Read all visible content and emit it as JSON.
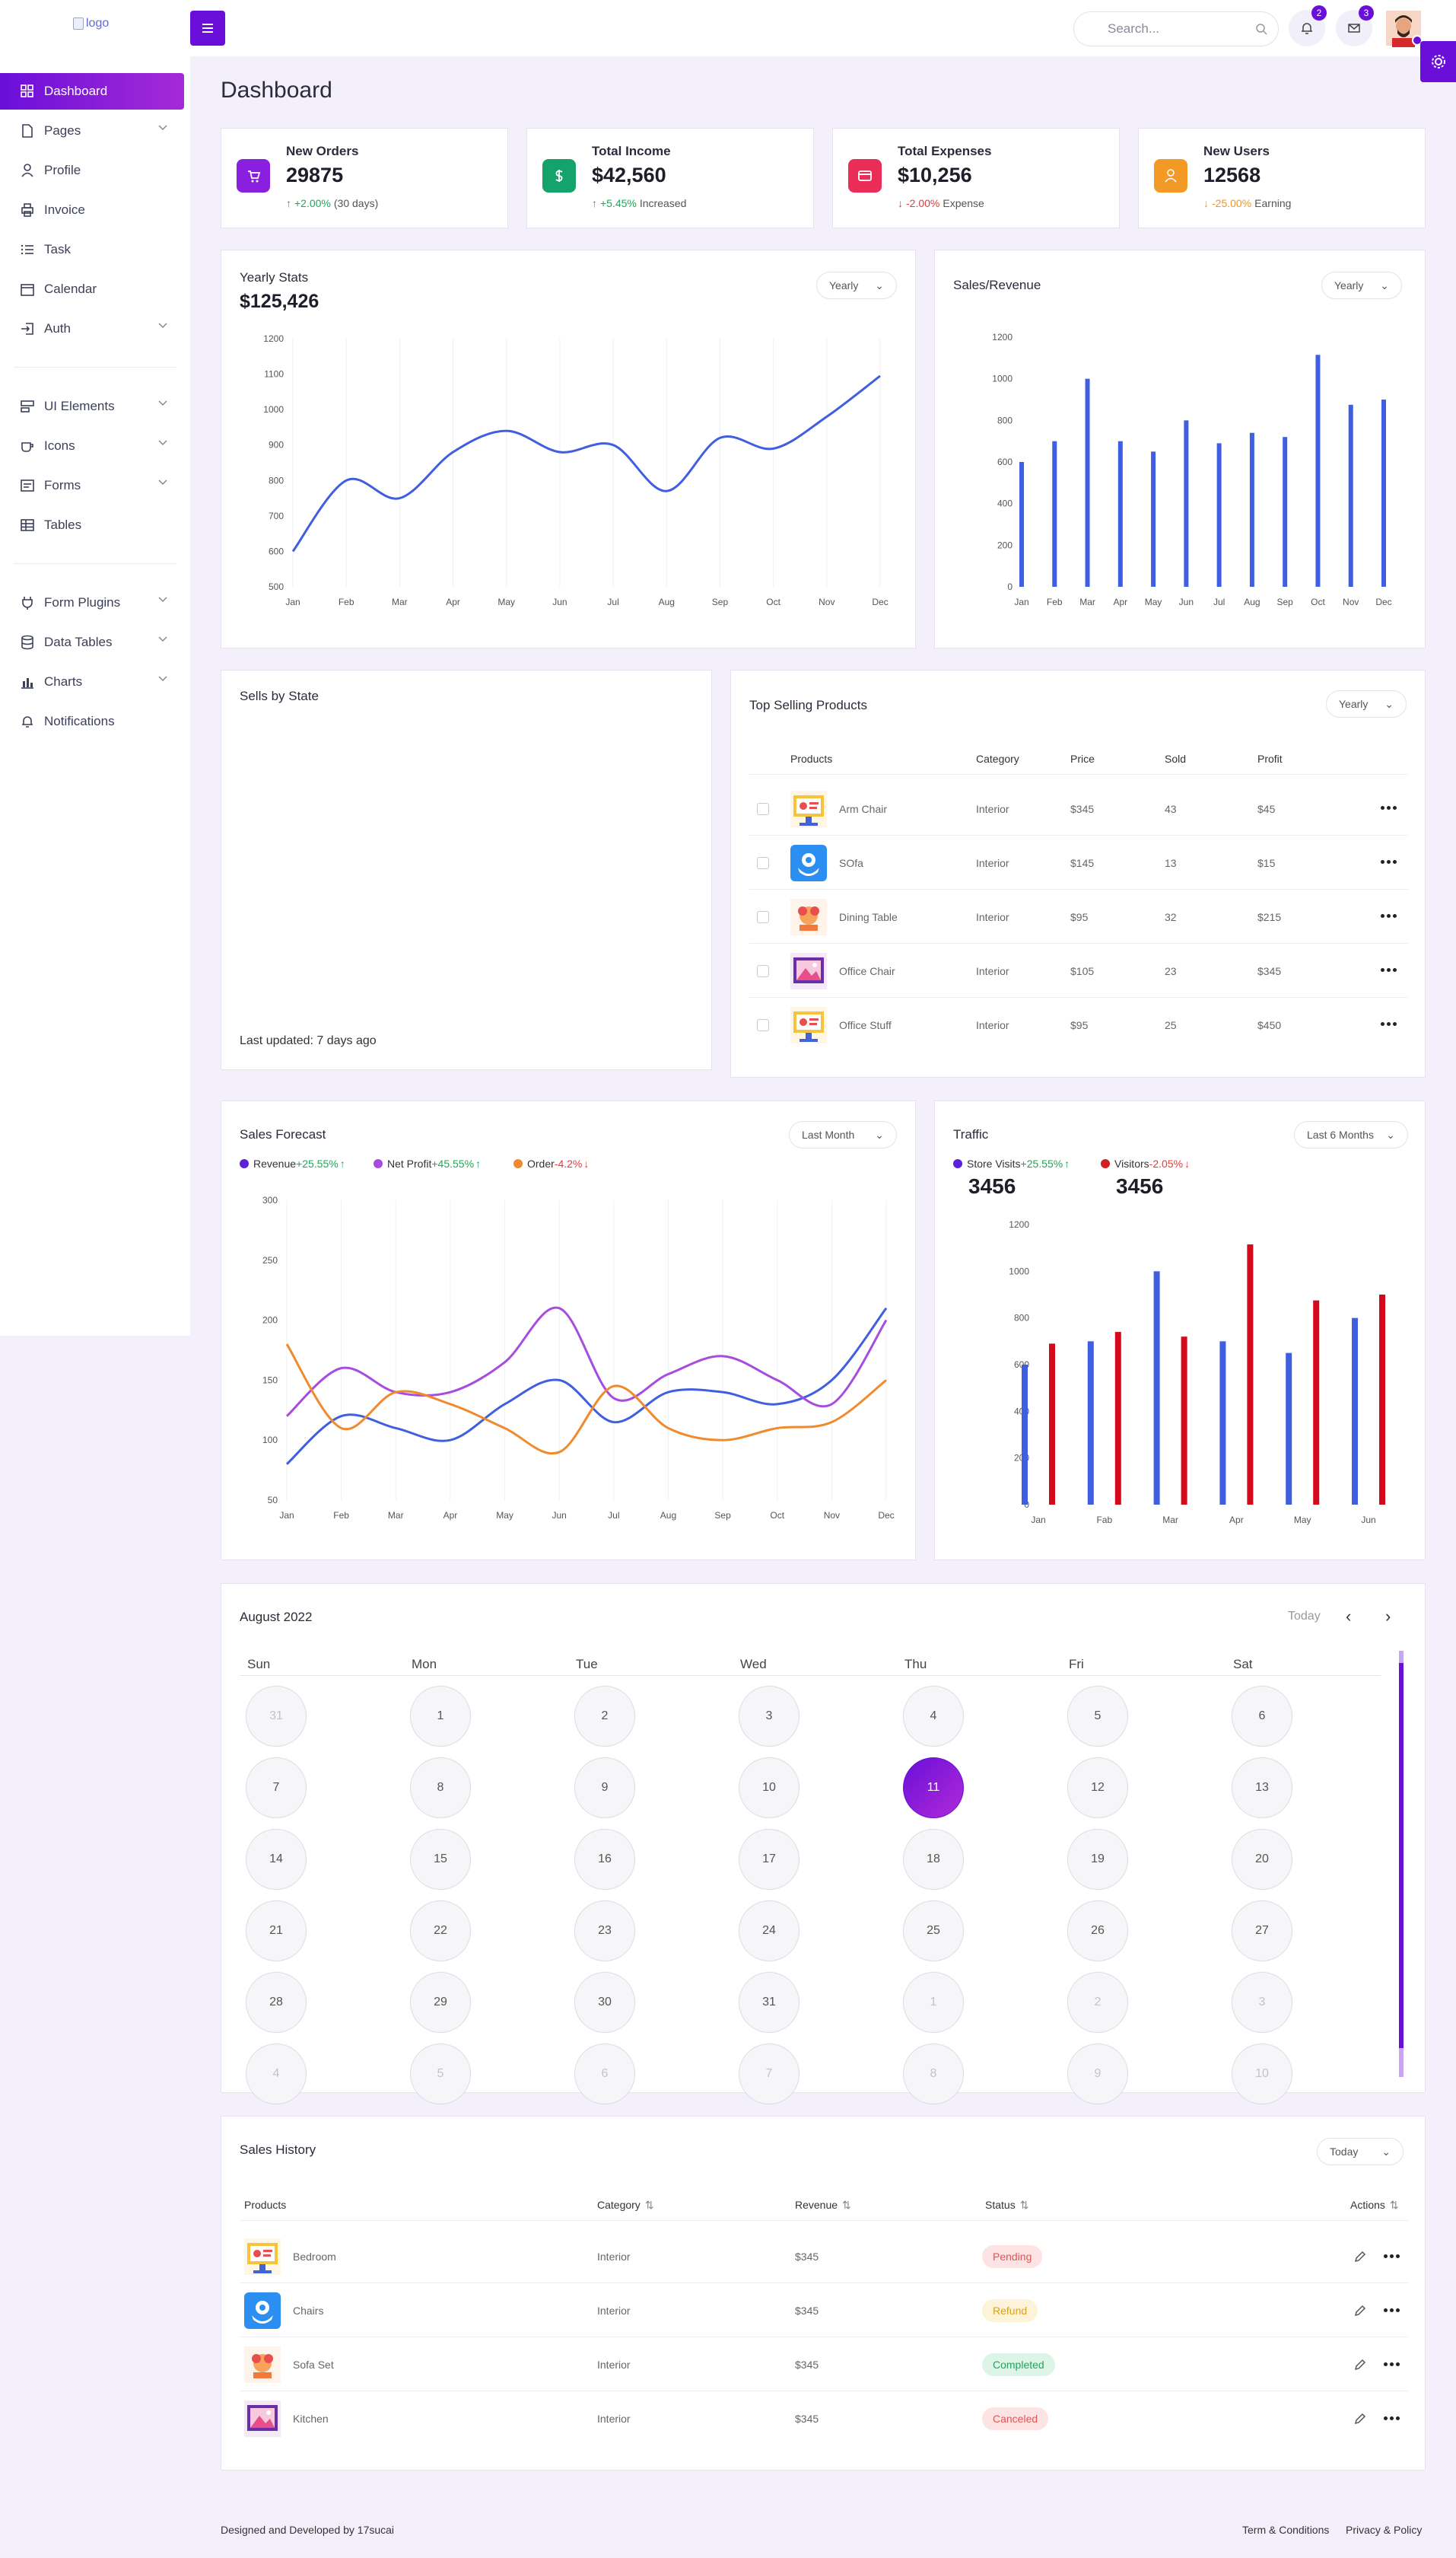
{
  "header": {
    "logo_alt": "logo",
    "search_placeholder": "Search...",
    "notifications_count": "2",
    "messages_count": "3"
  },
  "sidebar": {
    "items": [
      {
        "label": "Dashboard",
        "icon": "grid-icon"
      },
      {
        "label": "Pages",
        "icon": "file-icon",
        "chevron": true
      },
      {
        "label": "Profile",
        "icon": "user-icon"
      },
      {
        "label": "Invoice",
        "icon": "printer-icon"
      },
      {
        "label": "Task",
        "icon": "list-icon"
      },
      {
        "label": "Calendar",
        "icon": "calendar-icon"
      },
      {
        "label": "Auth",
        "icon": "login-icon",
        "chevron": true
      },
      {
        "label": "UI Elements",
        "icon": "layers-icon",
        "chevron": true
      },
      {
        "label": "Icons",
        "icon": "cup-icon",
        "chevron": true
      },
      {
        "label": "Forms",
        "icon": "form-icon",
        "chevron": true
      },
      {
        "label": "Tables",
        "icon": "table-icon"
      },
      {
        "label": "Form Plugins",
        "icon": "plug-icon",
        "chevron": true
      },
      {
        "label": "Data Tables",
        "icon": "database-icon",
        "chevron": true
      },
      {
        "label": "Charts",
        "icon": "bar-chart-icon",
        "chevron": true
      },
      {
        "label": "Notifications",
        "icon": "bell-icon"
      }
    ]
  },
  "page": {
    "title": "Dashboard"
  },
  "stats": [
    {
      "label": "New Orders",
      "value": "29875",
      "delta": "+2.00%",
      "note": "(30 days)",
      "arrow": "↑",
      "delta_color": "#22a55b",
      "icon": "cart-icon",
      "bg": "#8b1fe0"
    },
    {
      "label": "Total Income",
      "value": "$42,560",
      "delta": "+5.45%",
      "note": "Increased",
      "arrow": "↑",
      "delta_color": "#22a55b",
      "icon": "dollar-icon",
      "bg": "#14a36b"
    },
    {
      "label": "Total Expenses",
      "value": "$10,256",
      "delta": "-2.00%",
      "note": "Expense",
      "arrow": "↓",
      "delta_color": "#e23b3b",
      "icon": "card-icon",
      "bg": "#ea2d57"
    },
    {
      "label": "New Users",
      "value": "12568",
      "delta": "-25.00%",
      "note": "Earning",
      "arrow": "↓",
      "delta_color": "#f2941c",
      "icon": "user-icon",
      "bg": "#f39a26"
    }
  ],
  "yearly_stats": {
    "title": "Yearly Stats",
    "value": "$125,426",
    "dropdown": "Yearly"
  },
  "sales_revenue": {
    "title": "Sales/Revenue",
    "dropdown": "Yearly"
  },
  "sells_by_state": {
    "title": "Sells by State",
    "updated": "Last updated: 7 days ago"
  },
  "top_products": {
    "title": "Top Selling Products",
    "dropdown": "Yearly",
    "headers": [
      "Products",
      "Category",
      "Price",
      "Sold",
      "Profit"
    ],
    "rows": [
      {
        "name": "Arm Chair",
        "category": "Interior",
        "price": "$345",
        "sold": "43",
        "profit": "$45",
        "img": "monitor"
      },
      {
        "name": "SOfa",
        "category": "Interior",
        "price": "$145",
        "sold": "13",
        "profit": "$15",
        "img": "hands"
      },
      {
        "name": "Dining Table",
        "category": "Interior",
        "price": "$95",
        "sold": "32",
        "profit": "$215",
        "img": "flower"
      },
      {
        "name": "Office Chair",
        "category": "Interior",
        "price": "$105",
        "sold": "23",
        "profit": "$345",
        "img": "photo"
      },
      {
        "name": "Office Stuff",
        "category": "Interior",
        "price": "$95",
        "sold": "25",
        "profit": "$450",
        "img": "monitor"
      }
    ]
  },
  "sales_forecast": {
    "title": "Sales Forecast",
    "dropdown": "Last Month",
    "legend": [
      {
        "name": "Revenue",
        "delta": "+25.55%",
        "arrow": "↑",
        "color": "#5b21d8",
        "delta_color": "#22a55b"
      },
      {
        "name": "Net Profit",
        "delta": "+45.55%",
        "arrow": "↑",
        "color": "#a64de0",
        "delta_color": "#22a55b"
      },
      {
        "name": "Order",
        "delta": "-4.2%",
        "arrow": "↓",
        "color": "#f08a2c",
        "delta_color": "#e23b3b"
      }
    ]
  },
  "traffic": {
    "title": "Traffic",
    "dropdown": "Last 6 Months",
    "legend": [
      {
        "name": "Store Visits",
        "delta": "+25.55%",
        "arrow": "↑",
        "value": "3456",
        "color": "#5b21d8",
        "delta_color": "#22a55b"
      },
      {
        "name": "Visitors",
        "delta": "-2.05%",
        "arrow": "↓",
        "value": "3456",
        "color": "#d21f1f",
        "delta_color": "#e23b3b"
      }
    ]
  },
  "calendar": {
    "title": "August 2022",
    "today_label": "Today",
    "days_of_week": [
      "Sun",
      "Mon",
      "Tue",
      "Wed",
      "Thu",
      "Fri",
      "Sat"
    ],
    "weeks": [
      [
        "31",
        "1",
        "2",
        "3",
        "4",
        "5",
        "6"
      ],
      [
        "7",
        "8",
        "9",
        "10",
        "11",
        "12",
        "13"
      ],
      [
        "14",
        "15",
        "16",
        "17",
        "18",
        "19",
        "20"
      ],
      [
        "21",
        "22",
        "23",
        "24",
        "25",
        "26",
        "27"
      ],
      [
        "28",
        "29",
        "30",
        "31",
        "1",
        "2",
        "3"
      ],
      [
        "4",
        "5",
        "6",
        "7",
        "8",
        "9",
        "10"
      ]
    ],
    "selected": "11"
  },
  "sales_history": {
    "title": "Sales History",
    "dropdown": "Today",
    "headers": [
      "Products",
      "Category",
      "Revenue",
      "Status",
      "Actions"
    ],
    "rows": [
      {
        "name": "Bedroom",
        "category": "Interior",
        "revenue": "$345",
        "status": "Pending",
        "status_bg": "#fde3e3",
        "status_color": "#e05454",
        "img": "monitor"
      },
      {
        "name": "Chairs",
        "category": "Interior",
        "revenue": "$345",
        "status": "Refund",
        "status_bg": "#fdf3d9",
        "status_color": "#d9a021",
        "img": "hands"
      },
      {
        "name": "Sofa Set",
        "category": "Interior",
        "revenue": "$345",
        "status": "Completed",
        "status_bg": "#dcf5e6",
        "status_color": "#22a55b",
        "img": "flower"
      },
      {
        "name": "Kitchen",
        "category": "Interior",
        "revenue": "$345",
        "status": "Canceled",
        "status_bg": "#fde3e3",
        "status_color": "#e05454",
        "img": "photo"
      }
    ]
  },
  "footer": {
    "credit": "Designed and Developed by 17sucai",
    "terms": "Term & Conditions",
    "privacy": "Privacy & Policy"
  },
  "chart_data": [
    {
      "type": "line",
      "title": "Yearly Stats",
      "categories": [
        "Jan",
        "Feb",
        "Mar",
        "Apr",
        "May",
        "Jun",
        "Jul",
        "Aug",
        "Sep",
        "Oct",
        "Nov",
        "Dec"
      ],
      "series": [
        {
          "values": [
            600,
            800,
            750,
            880,
            940,
            880,
            900,
            770,
            920,
            890,
            980,
            1095
          ],
          "color": "#3f5fe0"
        }
      ],
      "ylim": [
        500,
        1200
      ],
      "yticks": [
        500,
        600,
        700,
        800,
        900,
        1000,
        1100,
        1200
      ],
      "grid": "vertical"
    },
    {
      "type": "bar",
      "title": "Sales/Revenue",
      "categories": [
        "Jan",
        "Feb",
        "Mar",
        "Apr",
        "May",
        "Jun",
        "Jul",
        "Aug",
        "Sep",
        "Oct",
        "Nov",
        "Dec"
      ],
      "series": [
        {
          "values": [
            600,
            700,
            1000,
            700,
            650,
            800,
            690,
            740,
            720,
            1115,
            875,
            900
          ],
          "color": "#3f5fe0"
        }
      ],
      "ylim": [
        0,
        1200
      ],
      "yticks": [
        0,
        200,
        400,
        600,
        800,
        1000,
        1200
      ]
    },
    {
      "type": "line",
      "title": "Sales Forecast",
      "categories": [
        "Jan",
        "Feb",
        "Mar",
        "Apr",
        "May",
        "Jun",
        "Jul",
        "Aug",
        "Sep",
        "Oct",
        "Nov",
        "Dec"
      ],
      "series": [
        {
          "name": "Revenue",
          "values": [
            80,
            120,
            110,
            100,
            130,
            150,
            115,
            140,
            140,
            130,
            150,
            210
          ],
          "color": "#3f5fe0"
        },
        {
          "name": "Net Profit",
          "values": [
            120,
            160,
            140,
            140,
            165,
            210,
            135,
            155,
            170,
            150,
            130,
            200
          ],
          "color": "#a64de0"
        },
        {
          "name": "Order",
          "values": [
            180,
            110,
            140,
            130,
            110,
            90,
            145,
            110,
            100,
            110,
            115,
            150
          ],
          "color": "#f08a2c"
        }
      ],
      "ylim": [
        50,
        300
      ],
      "yticks": [
        50,
        100,
        150,
        200,
        250,
        300
      ],
      "grid": "vertical"
    },
    {
      "type": "bar",
      "title": "Traffic",
      "categories": [
        "Jan",
        "Fab",
        "Mar",
        "Apr",
        "May",
        "Jun"
      ],
      "series": [
        {
          "name": "Store Visits",
          "values": [
            600,
            700,
            1000,
            700,
            650,
            800
          ],
          "color": "#3f5fe0"
        },
        {
          "name": "Visitors",
          "values": [
            690,
            740,
            720,
            1115,
            875,
            900
          ],
          "color": "#d4091b"
        }
      ],
      "ylim": [
        0,
        1200
      ],
      "yticks": [
        0,
        200,
        400,
        600,
        800,
        1000,
        1200
      ]
    }
  ]
}
